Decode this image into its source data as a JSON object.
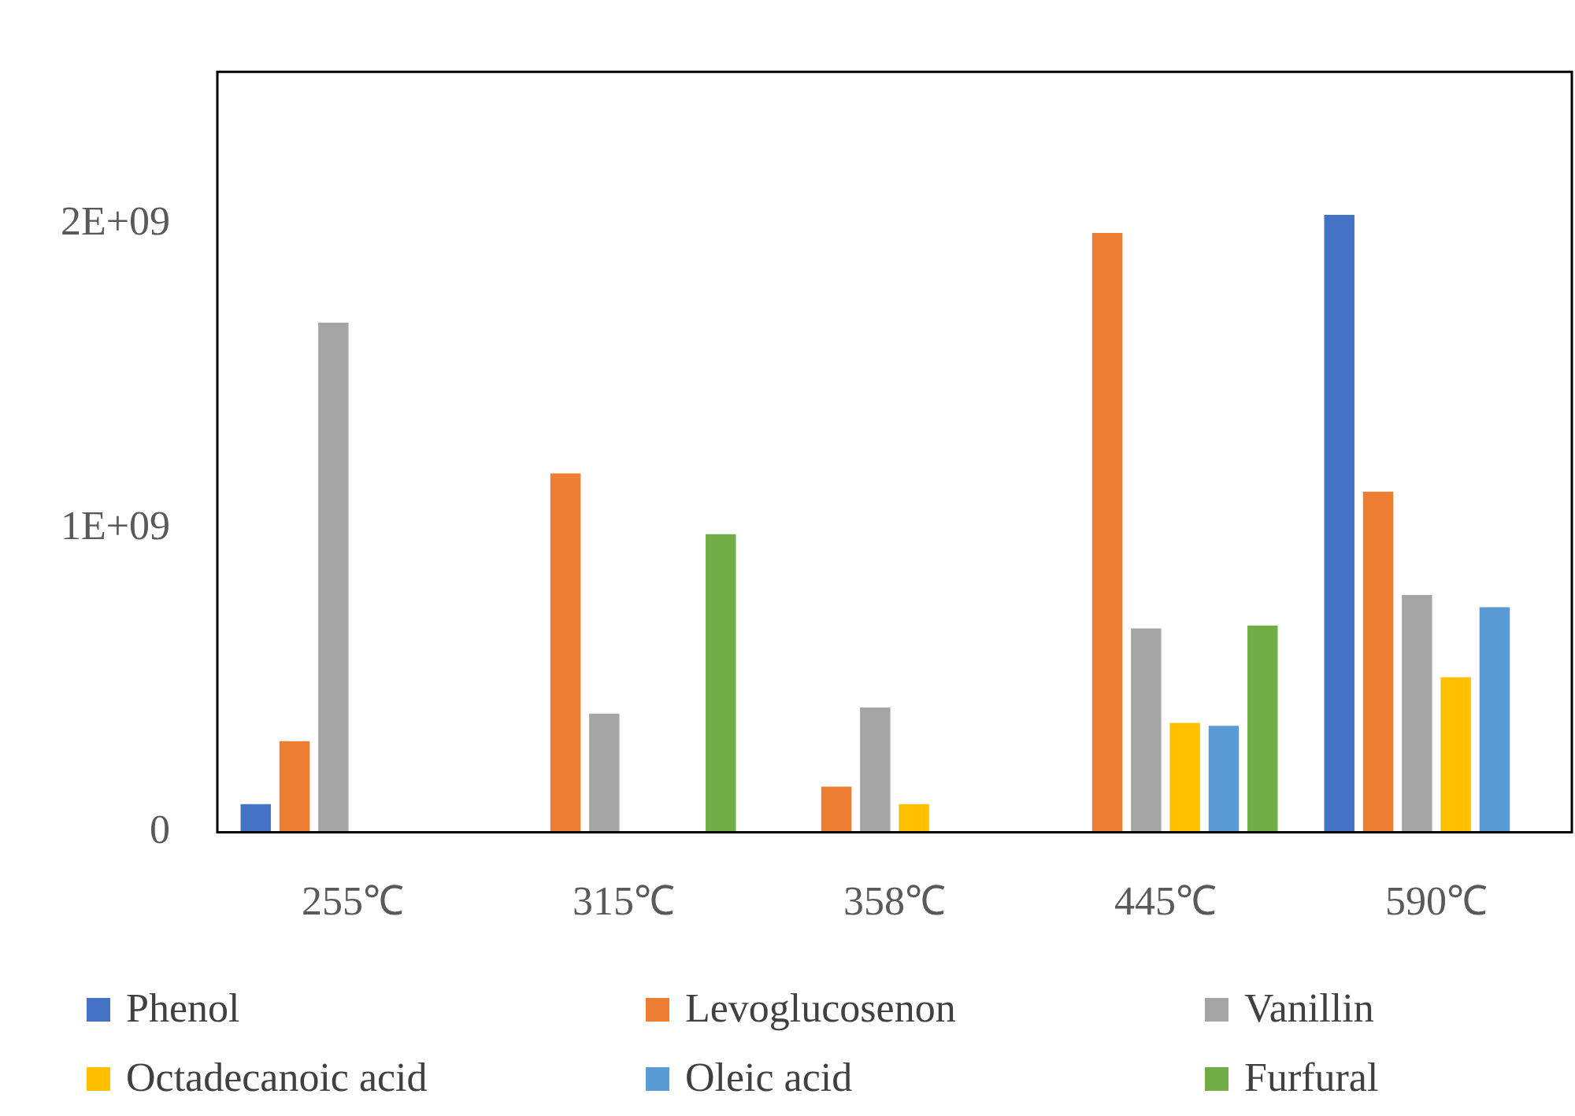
{
  "chart_data": {
    "type": "bar",
    "categories": [
      "255℃",
      "315℃",
      "358℃",
      "445℃",
      "590℃"
    ],
    "series": [
      {
        "name": "Phenol",
        "color": "#4472c4",
        "values": [
          93000000,
          null,
          null,
          null,
          2030000000
        ]
      },
      {
        "name": "Levoglucosenon",
        "color": "#ed7d31",
        "values": [
          300000000,
          1180000000,
          150000000,
          1970000000,
          1120000000
        ]
      },
      {
        "name": "Vanillin",
        "color": "#a5a5a5",
        "values": [
          1675000000,
          390000000,
          410000000,
          670000000,
          780000000
        ]
      },
      {
        "name": "Octadecanoic acid",
        "color": "#ffc000",
        "values": [
          null,
          null,
          93000000,
          360000000,
          510000000
        ]
      },
      {
        "name": "Oleic acid",
        "color": "#5b9bd5",
        "values": [
          null,
          null,
          null,
          350000000,
          740000000
        ]
      },
      {
        "name": "Furfural",
        "color": "#70ad47",
        "values": [
          null,
          980000000,
          null,
          680000000,
          null
        ]
      }
    ],
    "ylim": [
      0,
      2500000000
    ],
    "yticks": [
      {
        "value": 0,
        "label": "0"
      },
      {
        "value": 1000000000,
        "label": "1E+09"
      },
      {
        "value": 2000000000,
        "label": "2E+09"
      }
    ],
    "grid": false,
    "legend": "bottom"
  }
}
